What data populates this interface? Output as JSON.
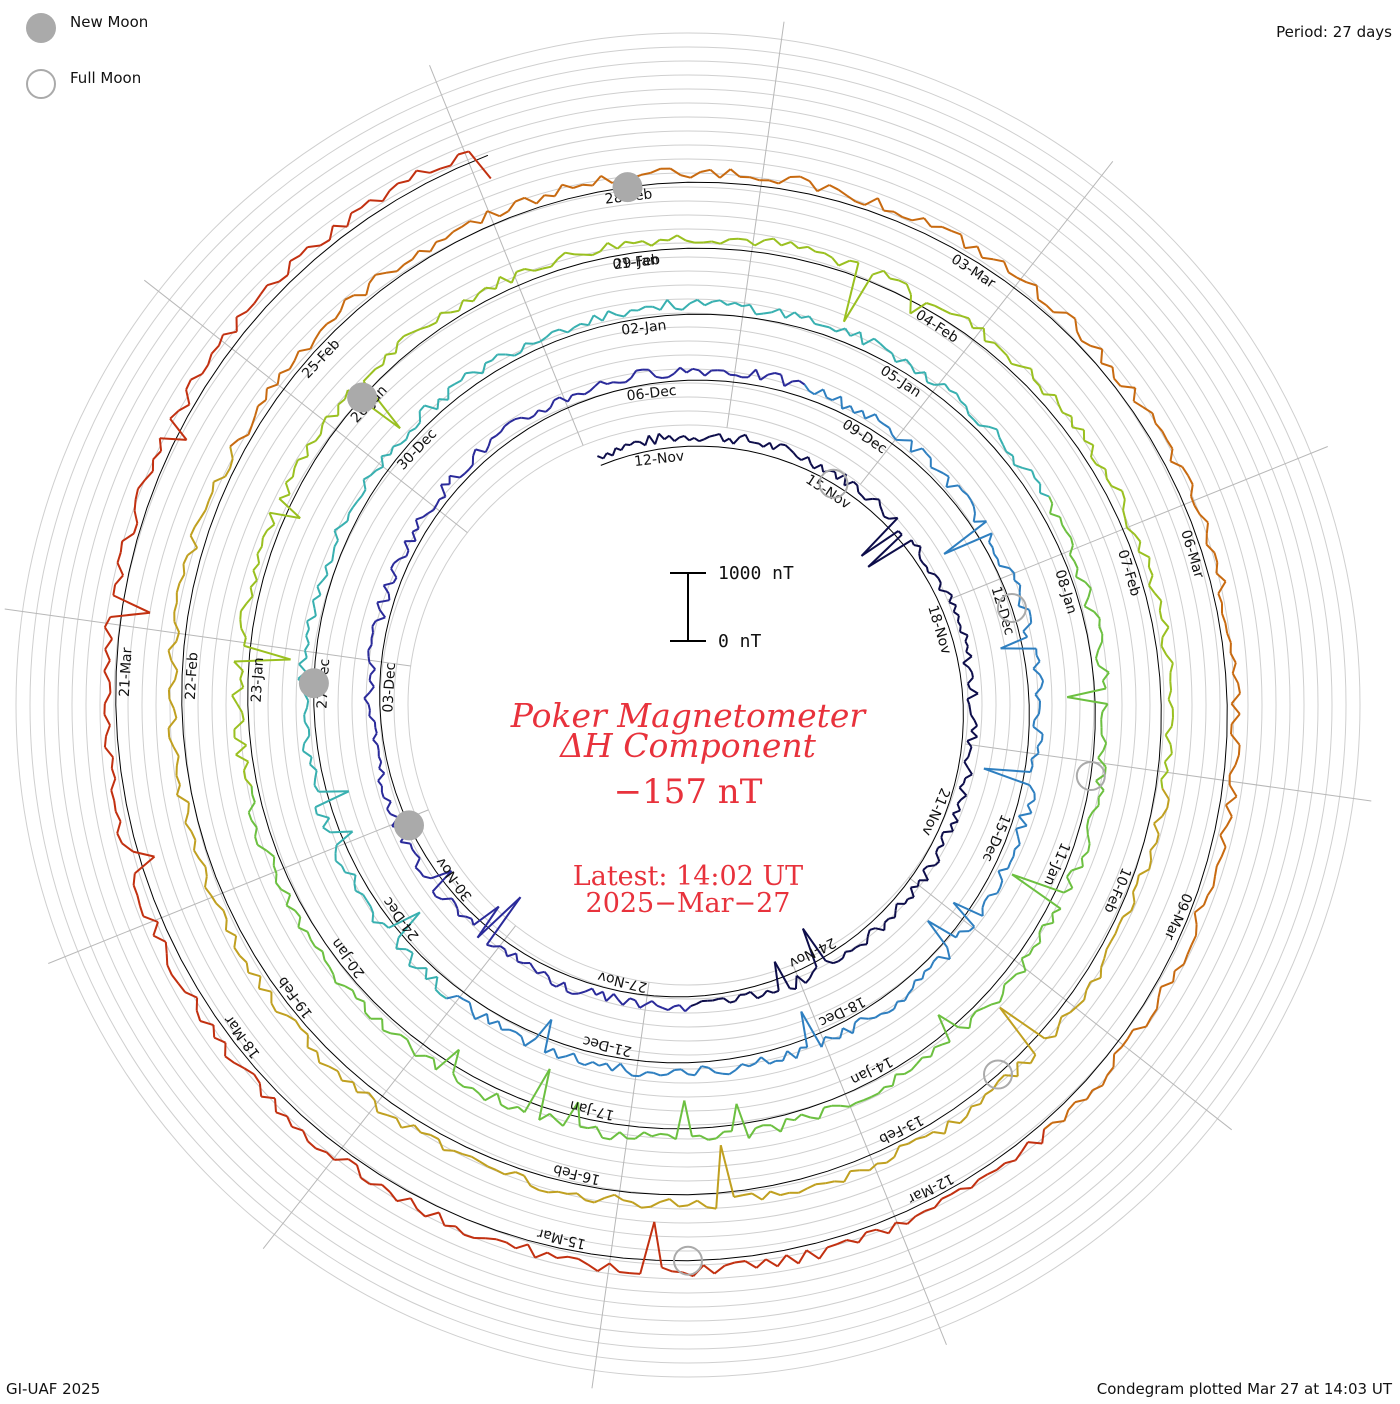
{
  "legend": {
    "new_moon": "New Moon",
    "full_moon": "Full Moon"
  },
  "period_label": "Period: 27 days",
  "credit": "GI-UAF 2025",
  "plotted_label": "Condegram plotted Mar 27 at 14:03 UT",
  "colors": {
    "title": "#e8323c",
    "rings": [
      "#0d0d4a",
      "#2a2a9a",
      "#2e7fc0",
      "#38b0b0",
      "#6cc040",
      "#9ac020",
      "#c0a020",
      "#c86a10",
      "#c23010"
    ]
  },
  "chart_data": {
    "type": "condegram",
    "title_line1": "Poker Magnetometer",
    "title_line2": "ΔH Component",
    "current_value": "−157 nT",
    "latest_line1": "Latest: 14:02 UT",
    "latest_line2": "2025−Mar−27",
    "scale_top": "1000 nT",
    "scale_bottom": "0 nT",
    "period_days": 27,
    "rings": [
      {
        "dates": [
          "12-Nov",
          "15-Nov",
          "18-Nov",
          "21-Nov",
          "24-Nov",
          "27-Nov",
          "30-Nov",
          "03-Dec"
        ]
      },
      {
        "dates": [
          "06-Dec",
          "09-Dec",
          "12-Dec",
          "15-Dec",
          "18-Dec",
          "21-Dec",
          "24-Dec",
          "27-Dec",
          "30-Dec"
        ]
      },
      {
        "dates": [
          "02-Jan",
          "05-Jan",
          "08-Jan",
          "11-Jan",
          "14-Jan",
          "17-Jan",
          "20-Jan",
          "23-Jan",
          "26-Jan",
          "29-Jan"
        ]
      },
      {
        "dates": [
          "01-Feb",
          "04-Feb",
          "07-Feb",
          "10-Feb",
          "13-Feb",
          "16-Feb",
          "19-Feb",
          "22-Feb",
          "25-Feb"
        ]
      },
      {
        "dates": [
          "28-Feb",
          "03-Mar",
          "06-Mar",
          "09-Mar",
          "12-Mar",
          "15-Mar",
          "18-Mar",
          "21-Mar"
        ]
      }
    ],
    "new_moons": [
      "01-Dec",
      "30-Dec",
      "29-Jan",
      "28-Feb"
    ],
    "full_moons": [
      "15-Nov",
      "15-Dec",
      "13-Jan",
      "12-Feb",
      "14-Mar"
    ]
  }
}
